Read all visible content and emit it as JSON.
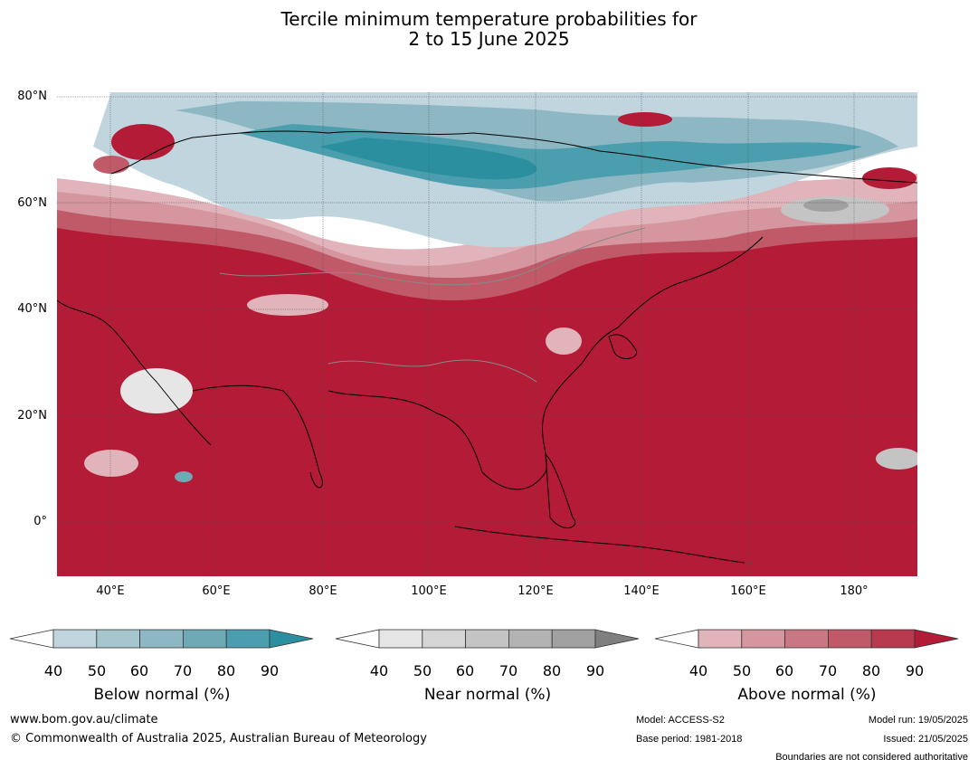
{
  "header": {
    "title_line1": "Tercile minimum temperature probabilities for",
    "title_line2": "2 to 15 June 2025"
  },
  "map": {
    "lat_labels": [
      "80°N",
      "60°N",
      "40°N",
      "20°N",
      "0°"
    ],
    "lon_labels": [
      "40°E",
      "60°E",
      "80°E",
      "100°E",
      "120°E",
      "140°E",
      "160°E",
      "180°"
    ],
    "extent": {
      "lon_min": 30,
      "lon_max": 192,
      "lat_min": -10,
      "lat_max": 81
    },
    "dominant_category": "Above normal"
  },
  "legends": {
    "below": {
      "title": "Below normal (%)",
      "ticks": [
        "40",
        "50",
        "60",
        "70",
        "80",
        "90"
      ],
      "colors": [
        "#ffffff",
        "#c0d5dd",
        "#a6c6cf",
        "#8cb7c3",
        "#6eaab6",
        "#4b9ead",
        "#2b8fa0"
      ]
    },
    "near": {
      "title": "Near normal (%)",
      "ticks": [
        "40",
        "50",
        "60",
        "70",
        "80",
        "90"
      ],
      "colors": [
        "#ffffff",
        "#e6e6e6",
        "#d5d5d5",
        "#c4c4c4",
        "#b3b3b3",
        "#a1a1a1",
        "#7f7f7f"
      ]
    },
    "above": {
      "title": "Above normal (%)",
      "ticks": [
        "40",
        "50",
        "60",
        "70",
        "80",
        "90"
      ],
      "colors": [
        "#ffffff",
        "#e1b3ba",
        "#d5969f",
        "#c97883",
        "#c05a69",
        "#b73a4e",
        "#b31b36"
      ]
    }
  },
  "footer": {
    "website": "www.bom.gov.au/climate",
    "copyright": "© Commonwealth of Australia 2025, Australian Bureau of Meteorology",
    "model": "Model: ACCESS-S2",
    "base_period": "Base period: 1981-2018",
    "model_run": "Model run: 19/05/2025",
    "issued": "Issued: 21/05/2025",
    "disclaimer": "Boundaries are not considered authoritative"
  }
}
